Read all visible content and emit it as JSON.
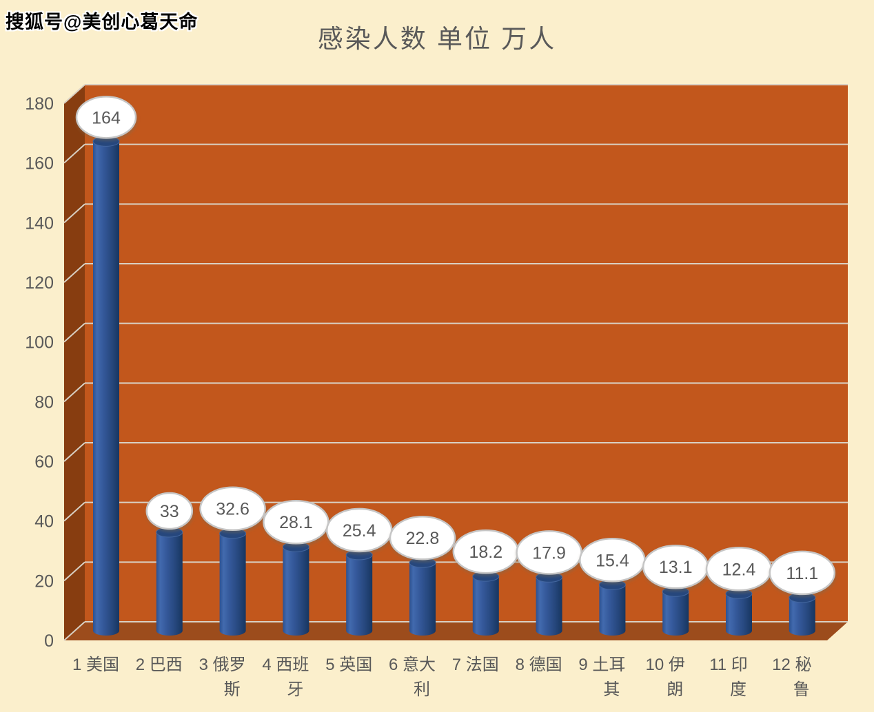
{
  "watermark": "搜狐号@美创心葛天命",
  "chart_data": {
    "type": "bar",
    "style": "3d-cylinder",
    "title": "感染人数 单位 万人",
    "categories": [
      "1 美国",
      "2 巴西",
      "3 俄罗\n斯",
      "4 西班\n牙",
      "5 英国",
      "6 意大\n利",
      "7 法国",
      "8 德国",
      "9 土耳\n其",
      "10 伊\n朗",
      "11 印\n度",
      "12 秘\n鲁"
    ],
    "values": [
      164,
      33,
      32.6,
      28.1,
      25.4,
      22.8,
      18.2,
      17.9,
      15.4,
      13.1,
      12.4,
      11.1
    ],
    "value_labels": [
      "164",
      "33",
      "32.6",
      "28.1",
      "25.4",
      "22.8",
      "18.2",
      "17.9",
      "15.4",
      "13.1",
      "12.4",
      "11.1"
    ],
    "xlabel": "",
    "ylabel": "",
    "ylim": [
      0,
      180
    ],
    "yticks": [
      0,
      20,
      40,
      60,
      80,
      100,
      120,
      140,
      160,
      180
    ],
    "grid": true,
    "legend": "none"
  },
  "colors": {
    "background": "#FBEFCC",
    "back_wall": "#C2571C",
    "side_wall": "#873D10",
    "floor": "#9C4C1C",
    "gridline": "#D9D1C4",
    "bar_light": "#426AAE",
    "bar_mid": "#35599B",
    "bar_dark": "#173660",
    "bar_edge": "#2C5190",
    "bar_cap": "#26477D",
    "bar_cap_rim": "#44679F",
    "axis_text": "#595959",
    "callout_fill": "#FFFFFF",
    "callout_border": "#C6C6C6",
    "callout_text": "#595959",
    "title_text": "#595959",
    "watermark_text": "#000000"
  }
}
